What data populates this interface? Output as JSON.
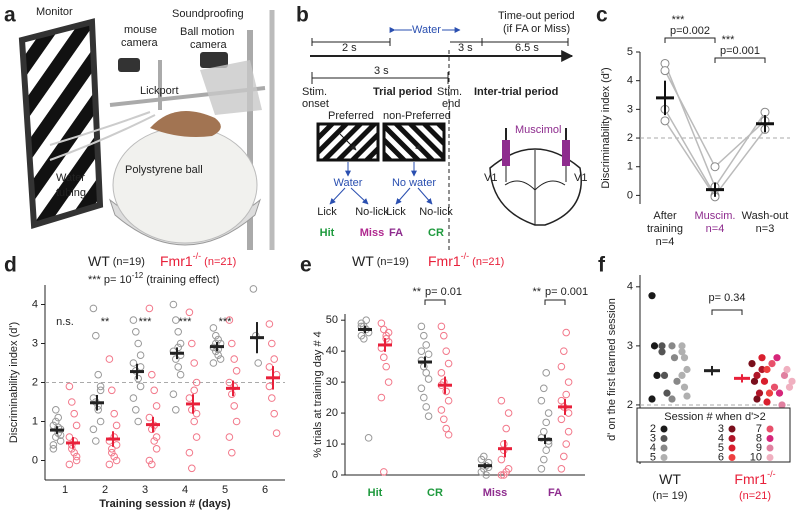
{
  "panel_labels": [
    "a",
    "b",
    "c",
    "d",
    "e",
    "f"
  ],
  "panel_a": {
    "monitor": "Monitor",
    "mouse_camera": [
      "mouse",
      "camera"
    ],
    "soundproofing": "Soundproofing",
    "ball_camera": [
      "Ball motion",
      "camera"
    ],
    "lickport": "Lickport",
    "water_tubing": [
      "Water",
      "tubing"
    ],
    "ball": "Polystyrene ball"
  },
  "panel_b": {
    "water": "Water",
    "timeout": [
      "Time-out period",
      "(if FA or Miss)"
    ],
    "durations": [
      "2 s",
      "3 s",
      "6.5 s",
      "3 s"
    ],
    "stim_onset": [
      "Stim.",
      "onset"
    ],
    "trial_period": "Trial period",
    "stim_end": [
      "Stim.",
      "end"
    ],
    "iti": "Inter-trial period",
    "preferred": "Preferred",
    "non_preferred": "non-Preferred",
    "outcome_water": "Water",
    "outcome_no_water": "No water",
    "responses": [
      "Lick",
      "No-lick",
      "Lick",
      "No-lick"
    ],
    "outcomes": [
      "Hit",
      "Miss",
      "FA",
      "CR"
    ],
    "outcome_colors": [
      "#1f9a3e",
      "#b0288f",
      "#8e2c8e",
      "#1f9a3e"
    ],
    "muscimol": "Muscimol",
    "v1": [
      "V1",
      "V1"
    ]
  },
  "chart_data": [
    {
      "type": "dot-mean",
      "ylabel": "Discriminability index (d')",
      "categories": [
        [
          "After",
          "training",
          "n=4"
        ],
        [
          "Muscim.",
          "n=4"
        ],
        [
          "Wash-out",
          "n=3"
        ]
      ],
      "category_colors": [
        "#222222",
        "#8e2c8e",
        "#222222"
      ],
      "means": [
        3.4,
        0.2,
        2.5
      ],
      "errors": [
        0.6,
        0.25,
        0.3
      ],
      "individuals": [
        [
          4.6,
          0.3,
          2.9
        ],
        [
          4.35,
          1.0,
          2.6
        ],
        [
          3.0,
          0.0,
          2.3
        ],
        [
          2.6,
          -0.05,
          null
        ]
      ],
      "ylim": [
        -0.3,
        5
      ],
      "yticks": [
        0,
        1,
        2,
        3,
        4,
        5
      ],
      "threshold": 2,
      "comparisons": [
        {
          "stars": "***",
          "p": "p=0.002"
        },
        {
          "stars": "***",
          "p": "p=0.001"
        }
      ]
    },
    {
      "type": "session-scatter",
      "ylabel": "Discriminability index (d')",
      "xlabel": "Training session # (days)",
      "x": [
        1,
        2,
        3,
        4,
        5,
        6
      ],
      "ylim": [
        -0.5,
        4.5
      ],
      "yticks": [
        0,
        1,
        2,
        3,
        4
      ],
      "threshold": 2,
      "annotation": {
        "stars": "***",
        "text": "p= 10",
        "sup": "-12",
        "tail": "(training effect)"
      },
      "significance": [
        "n.s.",
        "**",
        "***",
        "***",
        "***",
        null
      ],
      "series": [
        {
          "name": "WT",
          "n": "(n=19)",
          "color": "#222222",
          "point_color": "#999999",
          "means": [
            0.78,
            1.48,
            2.28,
            2.75,
            2.92,
            3.15
          ],
          "errors": [
            0.1,
            0.2,
            0.2,
            0.15,
            0.12,
            0.4
          ],
          "points": [
            [
              0.4,
              0.6,
              0.7,
              0.8,
              0.9,
              1.0,
              1.1,
              0.5,
              0.3,
              1.3,
              0.85,
              0.65
            ],
            [
              3.9,
              3.2,
              2.2,
              1.9,
              1.6,
              1.5,
              1.3,
              1.0,
              0.8,
              0.5,
              1.4,
              1.8
            ],
            [
              3.6,
              3.3,
              3.0,
              2.7,
              2.5,
              2.3,
              2.1,
              1.9,
              1.6,
              1.3,
              1.0,
              2.4
            ],
            [
              4.0,
              3.6,
              3.3,
              3.0,
              2.8,
              2.6,
              2.4,
              2.2,
              1.7,
              1.3,
              2.9,
              2.7
            ],
            [
              3.4,
              3.2,
              3.1,
              3.0,
              2.9,
              2.8,
              2.7,
              2.6,
              2.5,
              3.0,
              2.85
            ],
            [
              4.4,
              3.2,
              2.5
            ]
          ]
        },
        {
          "name": "Fmr1",
          "sup": "-/-",
          "n": "(n=21)",
          "color": "#e8203a",
          "point_color": "#f2788a",
          "means": [
            0.45,
            0.55,
            0.92,
            1.45,
            1.85,
            2.12
          ],
          "errors": [
            0.15,
            0.2,
            0.2,
            0.25,
            0.2,
            0.3
          ],
          "points": [
            [
              1.9,
              1.5,
              1.2,
              0.9,
              0.6,
              0.4,
              0.2,
              0.0,
              -0.1,
              0.3,
              0.5,
              0.1
            ],
            [
              2.6,
              1.8,
              1.2,
              0.9,
              0.5,
              0.3,
              0.1,
              0.0,
              -0.1,
              0.2,
              0.6,
              0.4
            ],
            [
              3.9,
              2.2,
              1.8,
              1.4,
              1.1,
              0.8,
              0.5,
              0.3,
              0.0,
              -0.1,
              0.9,
              0.6
            ],
            [
              3.8,
              3.0,
              2.5,
              2.0,
              1.6,
              1.3,
              1.0,
              0.6,
              0.2,
              -0.2,
              1.8,
              1.2
            ],
            [
              3.6,
              3.0,
              2.6,
              2.3,
              2.0,
              1.7,
              1.4,
              1.0,
              0.6,
              0.2,
              1.9
            ],
            [
              3.5,
              3.0,
              2.6,
              2.2,
              1.9,
              1.6,
              1.2,
              0.7,
              2.4
            ]
          ]
        }
      ]
    },
    {
      "type": "outcome-scatter",
      "ylabel": "% trials at training day # 4",
      "categories": [
        "Hit",
        "CR",
        "Miss",
        "FA"
      ],
      "category_colors": [
        "#1f9a3e",
        "#1f9a3e",
        "#8e2c8e",
        "#8e2c8e"
      ],
      "ylim": [
        0,
        52
      ],
      "yticks": [
        0,
        10,
        20,
        30,
        40,
        50
      ],
      "comparisons": [
        null,
        {
          "stars": "**",
          "p": "p= 0.01"
        },
        null,
        {
          "stars": "**",
          "p": "p= 0.001"
        }
      ],
      "series": [
        {
          "name": "WT",
          "n": "(n=19)",
          "color": "#222222",
          "point_color": "#999999",
          "means": [
            47,
            36.5,
            3,
            11.5
          ],
          "errors": [
            1.2,
            1.8,
            0.8,
            1.5
          ],
          "points": [
            [
              49,
              48,
              47,
              46,
              45,
              44,
              50,
              12,
              48
            ],
            [
              48,
              45,
              42,
              39,
              37,
              35,
              33,
              31,
              28,
              25,
              22,
              19,
              40
            ],
            [
              1,
              2,
              3,
              4,
              5,
              6,
              0,
              2.5
            ],
            [
              2,
              5,
              8,
              10,
              12,
              14,
              17,
              20,
              24,
              28,
              33,
              11
            ]
          ]
        },
        {
          "name": "Fmr1",
          "sup": "-/-",
          "n": "(n=21)",
          "color": "#e8203a",
          "point_color": "#f2788a",
          "means": [
            42,
            29,
            8.5,
            22
          ],
          "errors": [
            2.2,
            2.8,
            2.8,
            2.6
          ],
          "points": [
            [
              49,
              47,
              45,
              43,
              41,
              38,
              35,
              30,
              25,
              1,
              44,
              46
            ],
            [
              48,
              45,
              40,
              36,
              33,
              30,
              27,
              24,
              21,
              18,
              15,
              13,
              29
            ],
            [
              0,
              0,
              1,
              2,
              5,
              10,
              15,
              20,
              24,
              8
            ],
            [
              2,
              6,
              10,
              14,
              18,
              22,
              26,
              30,
              35,
              40,
              46,
              20,
              24
            ]
          ]
        }
      ]
    },
    {
      "type": "first-session-scatter",
      "ylabel": "d' on the first learned session",
      "ylim": [
        1.0,
        4.2
      ],
      "yticks": [
        2,
        3,
        4
      ],
      "threshold": 2,
      "comparison": "p= 0.34",
      "legend_title": "Session # when d'>2",
      "groups": [
        {
          "name": "WT",
          "n": "(n= 19)",
          "color": "#222222",
          "mean": 2.58,
          "error": 0.08,
          "series": [
            {
              "name": "2",
              "color": "#1a1a1a",
              "values": [
                3.85,
                3.0,
                2.5,
                2.1
              ]
            },
            {
              "name": "3",
              "color": "#555555",
              "values": [
                3.0,
                2.5,
                2.2,
                2.9
              ]
            },
            {
              "name": "4",
              "color": "#888888",
              "values": [
                3.0,
                2.8,
                2.4,
                2.1
              ]
            },
            {
              "name": "5",
              "color": "#b0b0b0",
              "values": [
                3.0,
                2.8,
                2.6,
                2.5,
                2.3,
                2.15,
                2.9
              ]
            }
          ]
        },
        {
          "name": "Fmr1",
          "sup": "-/-",
          "n": "(n=21)",
          "color": "#e8203a",
          "mean": 2.45,
          "error": 0.07,
          "series": [
            {
              "name": "3",
              "color": "#7a0f1c",
              "values": [
                2.7,
                2.4,
                2.1
              ]
            },
            {
              "name": "4",
              "color": "#b01528",
              "values": [
                2.5,
                2.2,
                2.6
              ]
            },
            {
              "name": "5",
              "color": "#d91f2e",
              "values": [
                2.8,
                2.4,
                2.05
              ]
            },
            {
              "name": "6",
              "color": "#ee4040",
              "values": [
                2.6,
                2.2
              ]
            },
            {
              "name": "7",
              "color": "#e8506a",
              "values": [
                2.7,
                2.3
              ]
            },
            {
              "name": "8",
              "color": "#d6267a",
              "values": [
                2.8,
                2.2
              ]
            },
            {
              "name": "9",
              "color": "#e080a0",
              "values": [
                2.0,
                2.5
              ]
            },
            {
              "name": "10",
              "color": "#f0b0c0",
              "values": [
                2.6,
                2.3,
                2.4
              ]
            }
          ]
        }
      ]
    }
  ]
}
